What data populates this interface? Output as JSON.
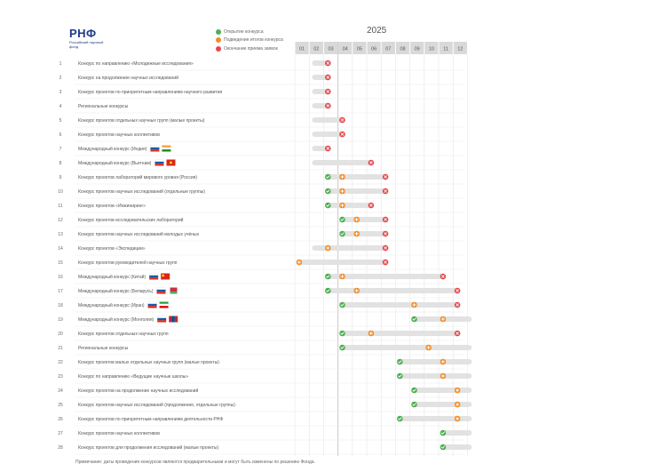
{
  "header": {
    "logo": "РНФ",
    "logo_sub": "Российский научный фонд",
    "year": "2025"
  },
  "legend": [
    {
      "label": "Открытие конкурса",
      "color": "#4caf50",
      "icon": "check-icon"
    },
    {
      "label": "Подведение итогов конкурса",
      "color": "#f28c28",
      "icon": "plus-icon"
    },
    {
      "label": "Окончание приема заявок",
      "color": "#e5484d",
      "icon": "x-icon"
    }
  ],
  "colors": {
    "open": "#4caf50",
    "close": "#e5484d",
    "result": "#f28c28",
    "bar": "#e2e2e2",
    "month_header": "#d9d9d9"
  },
  "chart_data": {
    "type": "gantt",
    "categories": [
      "01",
      "02",
      "03",
      "04",
      "05",
      "06",
      "07",
      "08",
      "09",
      "10",
      "11",
      "12"
    ],
    "rows": [
      {
        "num": "1",
        "label": "Конкурс по направлению «Молодежные исследования»",
        "bar": [
          1.2,
          2.3
        ],
        "events": [
          {
            "type": "close",
            "x": 2.3
          }
        ]
      },
      {
        "num": "2",
        "label": "Конкурс на продолжение научных исследований",
        "bar": [
          1.2,
          2.3
        ],
        "events": [
          {
            "type": "close",
            "x": 2.3
          }
        ]
      },
      {
        "num": "3",
        "label": "Конкурс проектов по приоритетным направлениям научного развития",
        "bar": [
          1.2,
          2.3
        ],
        "events": [
          {
            "type": "close",
            "x": 2.3
          }
        ]
      },
      {
        "num": "4",
        "label": "Региональные конкурсы",
        "bar": [
          1.2,
          2.3
        ],
        "events": [
          {
            "type": "close",
            "x": 2.3
          }
        ]
      },
      {
        "num": "5",
        "label": "Конкурс проектов отдельных научных групп (малые проекты)",
        "bar": [
          1.2,
          3.3
        ],
        "events": [
          {
            "type": "close",
            "x": 3.3
          }
        ]
      },
      {
        "num": "6",
        "label": "Конкурс проектов научных коллективов",
        "bar": [
          1.2,
          3.3
        ],
        "events": [
          {
            "type": "close",
            "x": 3.3
          }
        ]
      },
      {
        "num": "7",
        "label": "Международный конкурс (Индия)",
        "flags": [
          "ru",
          "in"
        ],
        "bar": [
          1.2,
          2.3
        ],
        "events": [
          {
            "type": "close",
            "x": 2.3
          }
        ]
      },
      {
        "num": "8",
        "label": "Международный конкурс (Вьетнам)",
        "flags": [
          "ru",
          "vn"
        ],
        "bar": [
          1.2,
          5.3
        ],
        "events": [
          {
            "type": "close",
            "x": 5.3
          }
        ]
      },
      {
        "num": "9",
        "label": "Конкурс проектов лабораторий мирового уровня (Россия)",
        "bar": [
          2.3,
          6.3
        ],
        "events": [
          {
            "type": "open",
            "x": 2.3
          },
          {
            "type": "result",
            "x": 3.3
          },
          {
            "type": "close",
            "x": 6.3
          }
        ]
      },
      {
        "num": "10",
        "label": "Конкурс проектов научных исследований (отдельные группы)",
        "bar": [
          2.3,
          6.3
        ],
        "events": [
          {
            "type": "open",
            "x": 2.3
          },
          {
            "type": "result",
            "x": 3.3
          },
          {
            "type": "close",
            "x": 6.3
          }
        ]
      },
      {
        "num": "11",
        "label": "Конкурс проектов «Инжиниринг»",
        "bar": [
          2.3,
          5.3
        ],
        "events": [
          {
            "type": "open",
            "x": 2.3
          },
          {
            "type": "result",
            "x": 3.3
          },
          {
            "type": "close",
            "x": 5.3
          }
        ]
      },
      {
        "num": "12",
        "label": "Конкурс проектов исследовательских лабораторий",
        "bar": [
          3.3,
          6.3
        ],
        "events": [
          {
            "type": "open",
            "x": 3.3
          },
          {
            "type": "result",
            "x": 4.3
          },
          {
            "type": "close",
            "x": 6.3
          }
        ]
      },
      {
        "num": "13",
        "label": "Конкурс проектов научных исследований молодых учёных",
        "bar": [
          3.3,
          6.3
        ],
        "events": [
          {
            "type": "open",
            "x": 3.3
          },
          {
            "type": "result",
            "x": 4.3
          },
          {
            "type": "close",
            "x": 6.3
          }
        ]
      },
      {
        "num": "14",
        "label": "Конкурс проектов «Экспедиции»",
        "bar": [
          1.2,
          6.3
        ],
        "events": [
          {
            "type": "result",
            "x": 2.3
          },
          {
            "type": "close",
            "x": 6.3
          }
        ]
      },
      {
        "num": "15",
        "label": "Конкурс проектов руководителей научных групп",
        "bar": [
          0.3,
          6.3
        ],
        "events": [
          {
            "type": "result",
            "x": 0.3
          },
          {
            "type": "close",
            "x": 6.3
          }
        ]
      },
      {
        "num": "16",
        "label": "Международный конкурс (Китай)",
        "flags": [
          "ru",
          "cn"
        ],
        "bar": [
          2.3,
          10.3
        ],
        "events": [
          {
            "type": "open",
            "x": 2.3
          },
          {
            "type": "result",
            "x": 3.3
          },
          {
            "type": "close",
            "x": 10.3
          }
        ]
      },
      {
        "num": "17",
        "label": "Международный конкурс (Беларусь)",
        "flags": [
          "ru",
          "by"
        ],
        "bar": [
          2.3,
          11.3
        ],
        "events": [
          {
            "type": "open",
            "x": 2.3
          },
          {
            "type": "result",
            "x": 4.3
          },
          {
            "type": "close",
            "x": 11.3
          }
        ]
      },
      {
        "num": "18",
        "label": "Международный конкурс (Иран)",
        "flags": [
          "ru",
          "ir"
        ],
        "bar": [
          3.3,
          11.3
        ],
        "events": [
          {
            "type": "open",
            "x": 3.3
          },
          {
            "type": "result",
            "x": 8.3
          },
          {
            "type": "close",
            "x": 11.3
          }
        ]
      },
      {
        "num": "19",
        "label": "Международный конкурс (Монголия)",
        "flags": [
          "ru",
          "mn"
        ],
        "bar": [
          8.3,
          12.3
        ],
        "events": [
          {
            "type": "open",
            "x": 8.3
          },
          {
            "type": "result",
            "x": 10.3
          }
        ]
      },
      {
        "num": "20",
        "label": "Конкурс проектов отдельных научных групп",
        "bar": [
          3.3,
          11.3
        ],
        "events": [
          {
            "type": "open",
            "x": 3.3
          },
          {
            "type": "result",
            "x": 5.3
          },
          {
            "type": "close",
            "x": 11.3
          }
        ]
      },
      {
        "num": "21",
        "label": "Региональные конкурсы",
        "bar": [
          3.3,
          12.3
        ],
        "events": [
          {
            "type": "open",
            "x": 3.3
          },
          {
            "type": "result",
            "x": 9.3
          }
        ]
      },
      {
        "num": "22",
        "label": "Конкурс проектов малых отдельных научных групп (малые проекты)",
        "bar": [
          7.3,
          12.3
        ],
        "events": [
          {
            "type": "open",
            "x": 7.3
          },
          {
            "type": "result",
            "x": 10.3
          }
        ]
      },
      {
        "num": "23",
        "label": "Конкурс по направлению «Ведущие научные школы»",
        "bar": [
          7.3,
          12.3
        ],
        "events": [
          {
            "type": "open",
            "x": 7.3
          },
          {
            "type": "result",
            "x": 10.3
          }
        ]
      },
      {
        "num": "24",
        "label": "Конкурс проектов на продолжение научных исследований",
        "bar": [
          8.3,
          12.3
        ],
        "events": [
          {
            "type": "open",
            "x": 8.3
          },
          {
            "type": "result",
            "x": 11.3
          }
        ]
      },
      {
        "num": "25",
        "label": "Конкурс проектов научных исследований (продолжение, отдельные группы)",
        "bar": [
          8.3,
          12.3
        ],
        "events": [
          {
            "type": "open",
            "x": 8.3
          },
          {
            "type": "result",
            "x": 11.3
          }
        ]
      },
      {
        "num": "26",
        "label": "Конкурс проектов по приоритетным направлениям деятельности РНФ",
        "bar": [
          7.3,
          12.3
        ],
        "events": [
          {
            "type": "open",
            "x": 7.3
          },
          {
            "type": "result",
            "x": 11.3
          }
        ]
      },
      {
        "num": "27",
        "label": "Конкурс проектов научных коллективов",
        "bar": [
          10.3,
          12.3
        ],
        "events": [
          {
            "type": "open",
            "x": 10.3
          }
        ]
      },
      {
        "num": "28",
        "label": "Конкурс проектов для продолжения исследований (малые проекты)",
        "bar": [
          10.3,
          12.3
        ],
        "events": [
          {
            "type": "open",
            "x": 10.3
          }
        ]
      }
    ]
  },
  "footnote": "Примечание: даты проведения конкурсов являются предварительными и могут быть изменены по решению Фонда."
}
